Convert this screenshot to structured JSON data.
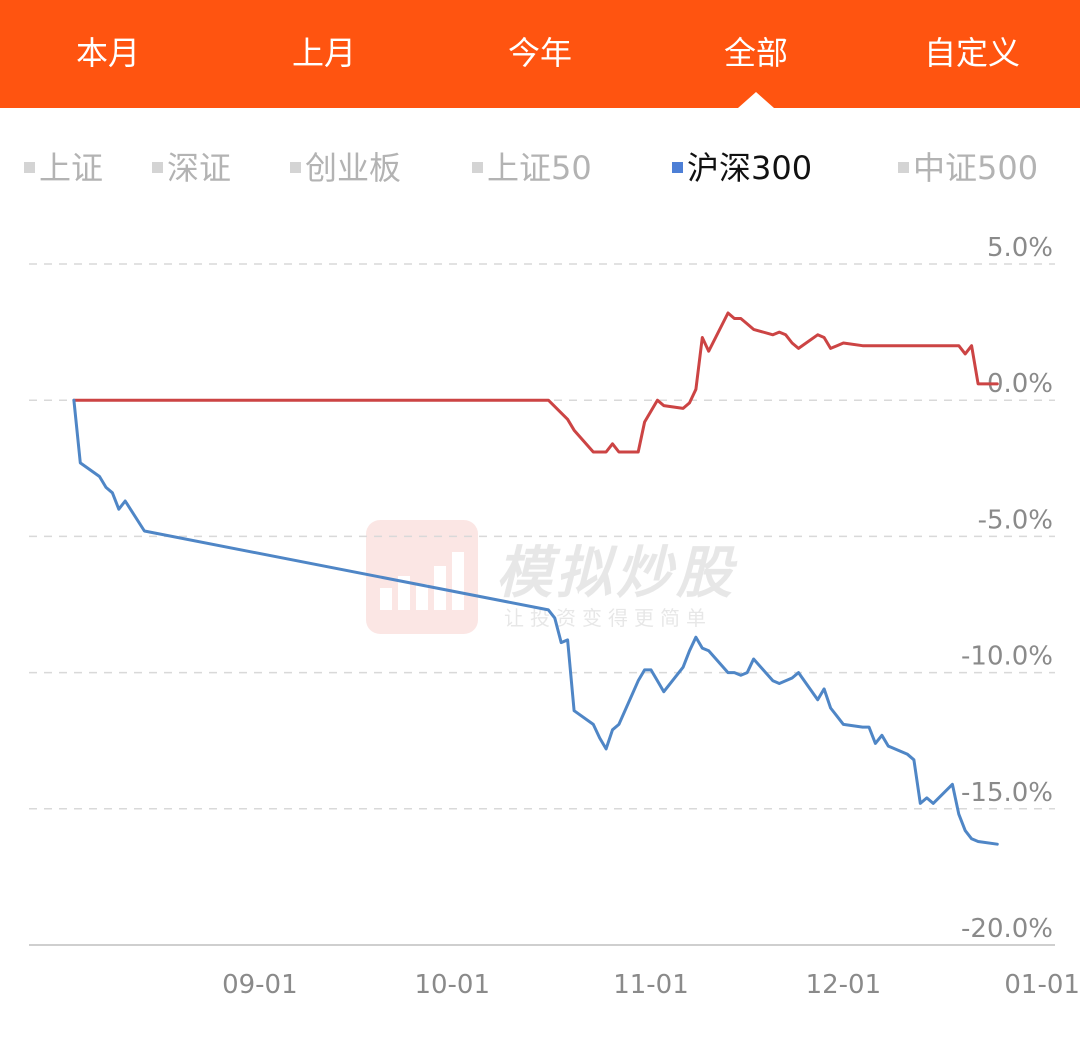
{
  "tabs": [
    {
      "label": "本月",
      "active": false
    },
    {
      "label": "上月",
      "active": false
    },
    {
      "label": "今年",
      "active": false
    },
    {
      "label": "全部",
      "active": true
    },
    {
      "label": "自定义",
      "active": false
    }
  ],
  "legend": [
    {
      "label": "上证",
      "active": false
    },
    {
      "label": "深证",
      "active": false
    },
    {
      "label": "创业板",
      "active": false
    },
    {
      "label": "上证50",
      "active": false
    },
    {
      "label": "沪深300",
      "active": true
    },
    {
      "label": "中证500",
      "active": false
    }
  ],
  "watermark": {
    "title": "模拟炒股",
    "subtitle": "让投资变得更简单"
  },
  "colors": {
    "header": "#ff5410",
    "series_red": "#cc4444",
    "series_blue": "#4f86c6",
    "active_legend": "#4d7fd6"
  },
  "chart_data": {
    "type": "line",
    "x_ticks": [
      "09-01",
      "10-01",
      "11-01",
      "12-01",
      "01-01"
    ],
    "y_ticks": [
      "5.0%",
      "0.0%",
      "-5.0%",
      "-10.0%",
      "-15.0%",
      "-20.0%"
    ],
    "ylim": [
      -20,
      5
    ],
    "xlim": [
      "2023-07-27",
      "2024-01-03"
    ],
    "grid": true,
    "series": [
      {
        "color": "#cc4444",
        "x": [
          "2023-08-03",
          "2023-10-16",
          "2023-10-19",
          "2023-10-20",
          "2023-10-23",
          "2023-10-24",
          "2023-10-25",
          "2023-10-26",
          "2023-10-27",
          "2023-10-30",
          "2023-10-31",
          "2023-11-01",
          "2023-11-02",
          "2023-11-03",
          "2023-11-06",
          "2023-11-07",
          "2023-11-08",
          "2023-11-09",
          "2023-11-10",
          "2023-11-13",
          "2023-11-14",
          "2023-11-15",
          "2023-11-16",
          "2023-11-17",
          "2023-11-20",
          "2023-11-21",
          "2023-11-22",
          "2023-11-23",
          "2023-11-24",
          "2023-11-27",
          "2023-11-28",
          "2023-11-29",
          "2023-11-30",
          "2023-12-01",
          "2023-12-04",
          "2023-12-05",
          "2023-12-06",
          "2023-12-07",
          "2023-12-08",
          "2023-12-11",
          "2023-12-12",
          "2023-12-13",
          "2023-12-14",
          "2023-12-15",
          "2023-12-18",
          "2023-12-19",
          "2023-12-20",
          "2023-12-21",
          "2023-12-22",
          "2023-12-25"
        ],
        "y": [
          0,
          0,
          -0.7,
          -1.1,
          -1.9,
          -1.9,
          -1.9,
          -1.6,
          -1.9,
          -1.9,
          -0.8,
          -0.4,
          0,
          -0.2,
          -0.3,
          -0.1,
          0.4,
          2.3,
          1.8,
          3.2,
          3.0,
          3.0,
          2.8,
          2.6,
          2.4,
          2.5,
          2.4,
          2.1,
          1.9,
          2.4,
          2.3,
          1.9,
          2.0,
          2.1,
          2.0,
          2.0,
          2.0,
          2.0,
          2.0,
          2.0,
          2.0,
          2.0,
          2.0,
          2.0,
          2.0,
          2.0,
          1.7,
          2.0,
          0.6,
          0.6
        ]
      },
      {
        "name": "沪深300",
        "color": "#4f86c6",
        "x": [
          "2023-08-03",
          "2023-08-04",
          "2023-08-07",
          "2023-08-08",
          "2023-08-09",
          "2023-08-10",
          "2023-08-11",
          "2023-08-14",
          "2023-10-16",
          "2023-10-17",
          "2023-10-18",
          "2023-10-19",
          "2023-10-20",
          "2023-10-23",
          "2023-10-24",
          "2023-10-25",
          "2023-10-26",
          "2023-10-27",
          "2023-10-30",
          "2023-10-31",
          "2023-11-01",
          "2023-11-02",
          "2023-11-03",
          "2023-11-06",
          "2023-11-07",
          "2023-11-08",
          "2023-11-09",
          "2023-11-10",
          "2023-11-13",
          "2023-11-14",
          "2023-11-15",
          "2023-11-16",
          "2023-11-17",
          "2023-11-20",
          "2023-11-21",
          "2023-11-22",
          "2023-11-23",
          "2023-11-24",
          "2023-11-27",
          "2023-11-28",
          "2023-11-29",
          "2023-11-30",
          "2023-12-01",
          "2023-12-04",
          "2023-12-05",
          "2023-12-06",
          "2023-12-07",
          "2023-12-08",
          "2023-12-11",
          "2023-12-12",
          "2023-12-13",
          "2023-12-14",
          "2023-12-15",
          "2023-12-18",
          "2023-12-19",
          "2023-12-20",
          "2023-12-21",
          "2023-12-22",
          "2023-12-25"
        ],
        "y": [
          0,
          -2.3,
          -2.8,
          -3.2,
          -3.4,
          -4.0,
          -3.7,
          -4.8,
          -7.7,
          -8.0,
          -8.9,
          -8.8,
          -11.4,
          -11.9,
          -12.4,
          -12.8,
          -12.1,
          -11.9,
          -10.3,
          -9.9,
          -9.9,
          -10.3,
          -10.7,
          -9.8,
          -9.2,
          -8.7,
          -9.1,
          -9.2,
          -10.0,
          -10.0,
          -10.1,
          -10.0,
          -9.5,
          -10.3,
          -10.4,
          -10.3,
          -10.2,
          -10.0,
          -11.0,
          -10.6,
          -11.3,
          -11.6,
          -11.9,
          -12.0,
          -12.0,
          -12.6,
          -12.3,
          -12.7,
          -13.0,
          -13.2,
          -14.8,
          -14.6,
          -14.8,
          -14.1,
          -15.2,
          -15.8,
          -16.1,
          -16.2,
          -16.3
        ]
      }
    ]
  }
}
